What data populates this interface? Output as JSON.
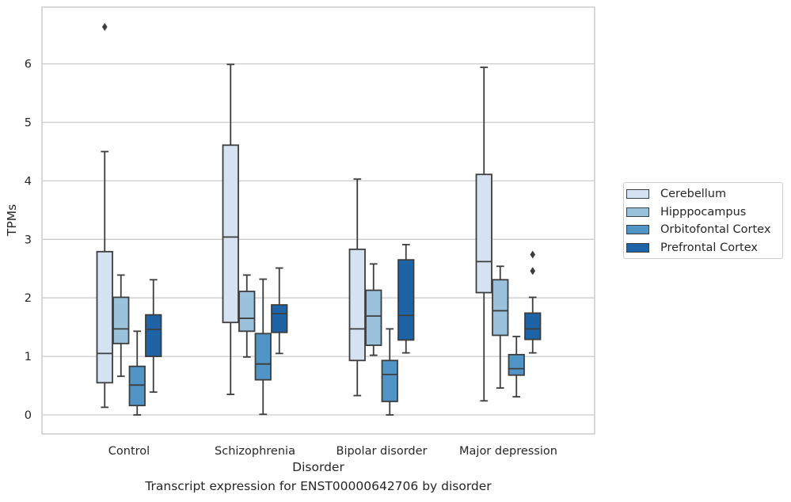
{
  "chart_data": {
    "type": "box",
    "ylabel": "TPMs",
    "xlabel": "Disorder",
    "caption": "Transcript expression for ENST00000642706 by disorder",
    "ylim": [
      -0.32,
      6.98
    ],
    "yticks": [
      "0",
      "1",
      "2",
      "3",
      "4",
      "5",
      "6"
    ],
    "categories": [
      "Control",
      "Schizophrenia",
      "Bipolar disorder",
      "Major depression"
    ],
    "grid": true,
    "legend_position": "right",
    "series": [
      {
        "name": "Cerebellum",
        "color": "#d4e2f1",
        "boxes": [
          {
            "whislo": 0.13,
            "q1": 0.55,
            "med": 1.05,
            "q3": 2.79,
            "whishi": 4.5,
            "fliers": [
              6.63
            ]
          },
          {
            "whislo": 0.35,
            "q1": 1.58,
            "med": 3.04,
            "q3": 4.61,
            "whishi": 5.99,
            "fliers": []
          },
          {
            "whislo": 0.33,
            "q1": 0.93,
            "med": 1.47,
            "q3": 2.83,
            "whishi": 4.03,
            "fliers": []
          },
          {
            "whislo": 0.24,
            "q1": 2.09,
            "med": 2.62,
            "q3": 4.11,
            "whishi": 5.94,
            "fliers": []
          }
        ]
      },
      {
        "name": "Hipppocampus",
        "color": "#9ac2dc",
        "boxes": [
          {
            "whislo": 0.66,
            "q1": 1.22,
            "med": 1.47,
            "q3": 2.01,
            "whishi": 2.39,
            "fliers": []
          },
          {
            "whislo": 0.99,
            "q1": 1.43,
            "med": 1.65,
            "q3": 2.11,
            "whishi": 2.39,
            "fliers": []
          },
          {
            "whislo": 1.02,
            "q1": 1.19,
            "med": 1.69,
            "q3": 2.13,
            "whishi": 2.58,
            "fliers": []
          },
          {
            "whislo": 0.46,
            "q1": 1.36,
            "med": 1.78,
            "q3": 2.31,
            "whishi": 2.54,
            "fliers": []
          }
        ]
      },
      {
        "name": "Orbitofontal Cortex",
        "color": "#5195c7",
        "boxes": [
          {
            "whislo": 0.0,
            "q1": 0.16,
            "med": 0.51,
            "q3": 0.83,
            "whishi": 1.43,
            "fliers": []
          },
          {
            "whislo": 0.01,
            "q1": 0.6,
            "med": 0.87,
            "q3": 1.39,
            "whishi": 2.32,
            "fliers": []
          },
          {
            "whislo": 0.0,
            "q1": 0.23,
            "med": 0.69,
            "q3": 0.93,
            "whishi": 1.47,
            "fliers": []
          },
          {
            "whislo": 0.31,
            "q1": 0.68,
            "med": 0.79,
            "q3": 1.03,
            "whishi": 1.34,
            "fliers": []
          }
        ]
      },
      {
        "name": "Prefrontal Cortex",
        "color": "#1e63a5",
        "boxes": [
          {
            "whislo": 0.39,
            "q1": 1.0,
            "med": 1.46,
            "q3": 1.71,
            "whishi": 2.31,
            "fliers": []
          },
          {
            "whislo": 1.05,
            "q1": 1.41,
            "med": 1.73,
            "q3": 1.88,
            "whishi": 2.51,
            "fliers": []
          },
          {
            "whislo": 1.06,
            "q1": 1.28,
            "med": 1.7,
            "q3": 2.65,
            "whishi": 2.91,
            "fliers": []
          },
          {
            "whislo": 1.06,
            "q1": 1.29,
            "med": 1.47,
            "q3": 1.74,
            "whishi": 2.01,
            "fliers": [
              2.46,
              2.74
            ]
          }
        ]
      }
    ]
  }
}
